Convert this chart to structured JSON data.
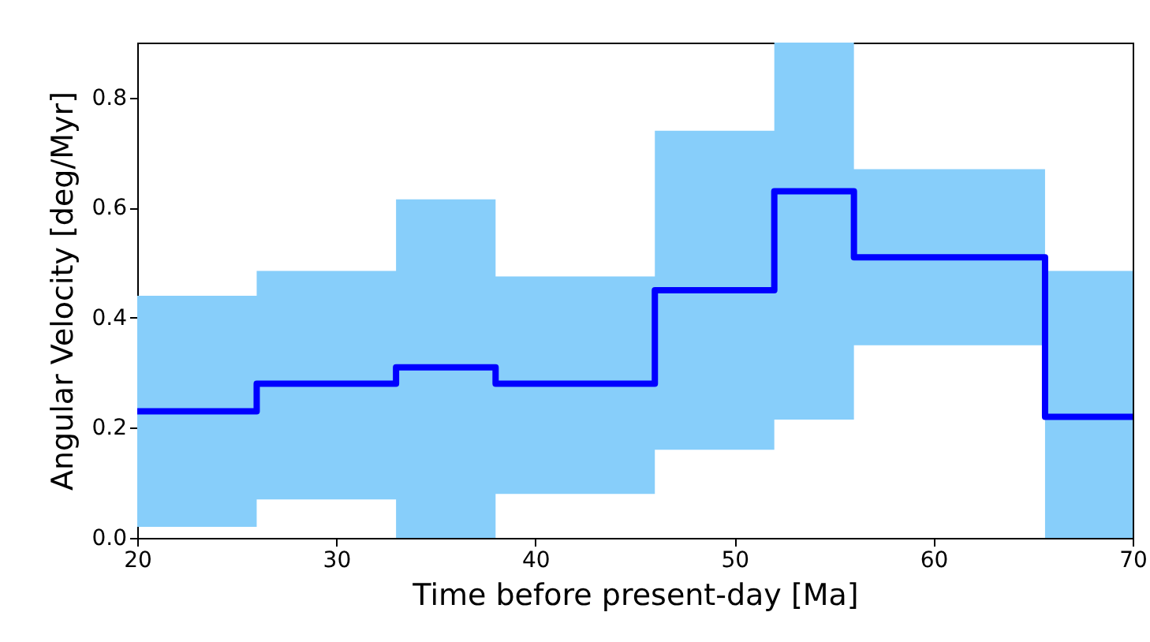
{
  "chart_data": {
    "type": "step",
    "xlabel": "Time before present-day [Ma]",
    "ylabel": "Angular Velocity [deg/Myr]",
    "x": [
      20,
      26,
      33,
      38,
      46,
      52,
      56,
      65.6,
      70
    ],
    "series": [
      {
        "color": "#0000ff",
        "values": [
          0.23,
          0.28,
          0.31,
          0.28,
          0.45,
          0.63,
          0.51,
          0.22,
          0.22
        ],
        "lower": [
          0.02,
          0.07,
          0,
          0.08,
          0.16,
          0.215,
          0.35,
          0,
          0
        ],
        "upper": [
          0.44,
          0.485,
          0.615,
          0.475,
          0.74,
          0.9,
          0.67,
          0.485,
          0.485
        ]
      }
    ],
    "xlim": [
      20,
      70
    ],
    "xticks": [
      20,
      30,
      40,
      50,
      60,
      70
    ],
    "ylim": [
      0,
      0.9
    ],
    "yticks": [
      {
        "value": 0,
        "label": "0.0"
      },
      0.2,
      0.4,
      0.6,
      0.8
    ],
    "grid": false
  }
}
